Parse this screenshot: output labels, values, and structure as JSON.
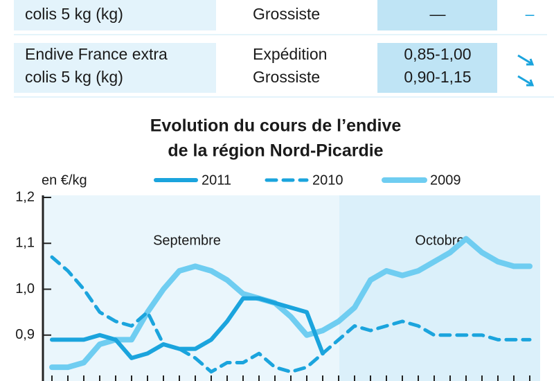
{
  "table": {
    "rows": [
      {
        "product": [
          "colis 5 kg (kg)"
        ],
        "stage": [
          "Grossiste"
        ],
        "price": [
          "—"
        ],
        "trend": [
          "–"
        ]
      },
      {
        "product": [
          "Endive France extra",
          "colis 5 kg (kg)"
        ],
        "stage": [
          "Expédition",
          "Grossiste"
        ],
        "price": [
          "0,85-1,00",
          "0,90-1,15"
        ]
      }
    ]
  },
  "chart_data": {
    "type": "line",
    "title": [
      "Evolution du cours de l’endive",
      "de la région Nord-Picardie"
    ],
    "y_label": "en €/kg",
    "annotations": [
      "Septembre",
      "Octobre"
    ],
    "categories": [
      null,
      null,
      null,
      null,
      null,
      null,
      null,
      null,
      null,
      null,
      null,
      null,
      null,
      null,
      null,
      null,
      null,
      null,
      null,
      null,
      null,
      null,
      null,
      null,
      null,
      null,
      null,
      null,
      null,
      null,
      null
    ],
    "series": [
      {
        "name": "2011",
        "color": "#1ba4dd",
        "style": "solid",
        "values": [
          0.89,
          0.89,
          0.89,
          0.9,
          0.89,
          0.85,
          0.86,
          0.88,
          0.87,
          0.87,
          0.89,
          0.93,
          0.98,
          0.98,
          0.97,
          0.96,
          0.95,
          0.86,
          null,
          null,
          null,
          null,
          null,
          null,
          null,
          null,
          null,
          null,
          null,
          null,
          null
        ]
      },
      {
        "name": "2010",
        "color": "#1ba4dd",
        "style": "dashed",
        "values": [
          1.07,
          1.04,
          1.0,
          0.95,
          0.93,
          0.92,
          0.95,
          0.88,
          0.87,
          0.85,
          0.82,
          0.84,
          0.84,
          0.86,
          0.83,
          0.82,
          0.83,
          0.86,
          0.89,
          0.92,
          0.91,
          0.92,
          0.93,
          0.92,
          0.9,
          0.9,
          0.9,
          0.9,
          0.89,
          0.89,
          0.89
        ]
      },
      {
        "name": "2009",
        "color": "#6fcdf1",
        "style": "solid",
        "values": [
          0.83,
          0.83,
          0.84,
          0.88,
          0.89,
          0.89,
          0.95,
          1.0,
          1.04,
          1.05,
          1.04,
          1.02,
          0.99,
          0.98,
          0.97,
          0.94,
          0.9,
          0.91,
          0.93,
          0.96,
          1.02,
          1.04,
          1.03,
          1.04,
          1.06,
          1.08,
          1.11,
          1.08,
          1.06,
          1.05,
          1.05
        ]
      }
    ],
    "ylim": [
      0.8,
      1.2
    ],
    "yticks": [
      {
        "value": 0.9,
        "label": "0,9"
      },
      {
        "value": 1.0,
        "label": "1,0"
      },
      {
        "value": 1.1,
        "label": "1,1"
      },
      {
        "value": 1.2,
        "label": "1,2"
      }
    ]
  }
}
